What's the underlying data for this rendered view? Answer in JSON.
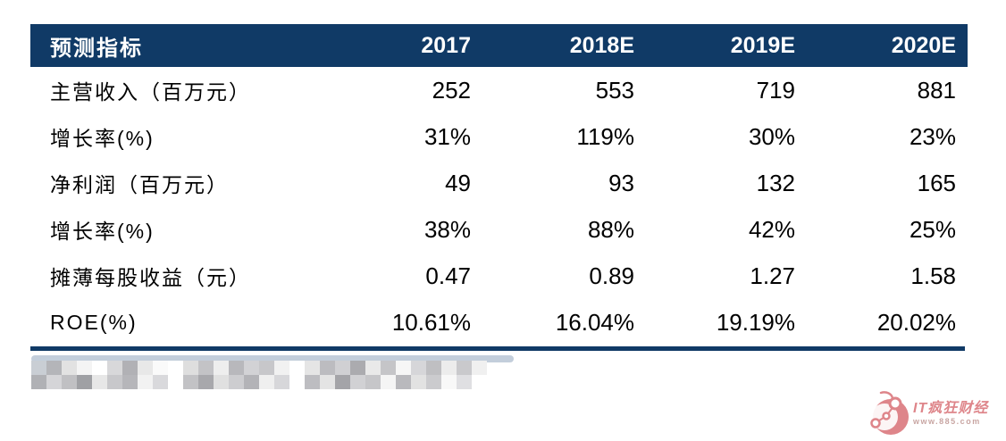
{
  "table": {
    "header": [
      "预测指标",
      "2017",
      "2018E",
      "2019E",
      "2020E"
    ],
    "rows": [
      {
        "label": "主营收入（百万元）",
        "values": [
          "252",
          "553",
          "719",
          "881"
        ]
      },
      {
        "label": "增长率(%)",
        "values": [
          "31%",
          "119%",
          "30%",
          "23%"
        ]
      },
      {
        "label": "净利润（百万元）",
        "values": [
          "49",
          "93",
          "132",
          "165"
        ]
      },
      {
        "label": "增长率(%)",
        "values": [
          "38%",
          "88%",
          "42%",
          "25%"
        ]
      },
      {
        "label": "摊薄每股收益（元）",
        "values": [
          "0.47",
          "0.89",
          "1.27",
          "1.58"
        ]
      },
      {
        "label": "ROE(%)",
        "values": [
          "10.61%",
          "16.04%",
          "19.19%",
          "20.02%"
        ]
      }
    ]
  },
  "styles": {
    "header_bg": "#103a66",
    "rule_color": "#103a66",
    "body_text": "#000000"
  },
  "redaction": {
    "smear_color": "#b8c5d5",
    "row1": [
      "#c9ced4",
      "#b4b5b9",
      "#e2e2e2",
      "#f4f4f4",
      "#ffffff",
      "#d8d8da",
      "#b1b1b5",
      "#e8e8e8",
      "#fafafa",
      "#ffffff",
      "#dedede",
      "#c3c3c6",
      "#eeeeee",
      "#b8b8bc",
      "#d2d2d5",
      "#c7c7ca",
      "#f1f1f1",
      "#ffffff",
      "#e5e5e5",
      "#bcbcc0",
      "#d0d0d3",
      "#ababaf",
      "#e9e9e9",
      "#c5c5c8",
      "#f6f6f6",
      "#d6d6d9",
      "#bfbfc2",
      "#ececec",
      "#c9c9cc",
      "#f0f0f0"
    ],
    "row2": [
      "#b0b1b5",
      "#d5d5d8",
      "#c0c0c3",
      "#9fa0a4",
      "#e7e7e7",
      "#c8c8cb",
      "#b6b6ba",
      "#f2f2f2",
      "#d9d9dc",
      "#ffffff",
      "#c2c2c5",
      "#a8a8ac",
      "#e0e0e0",
      "#cdcdd0",
      "#b3b3b7",
      "#efefef",
      "#d7d7da",
      "#ffffff",
      "#bdbdc1",
      "#e4e4e4",
      "#a4a4a8",
      "#d1d1d4",
      "#c6c6c9",
      "#f5f5f5",
      "#b9b9bd",
      "#e2e2e2",
      "#cbcbce",
      "#f8f8f8",
      "#dfdfe2",
      "#ffffff"
    ]
  },
  "watermark": {
    "title": "IT疯狂财经",
    "url": "www.885.com",
    "accent": "#c4232b"
  }
}
